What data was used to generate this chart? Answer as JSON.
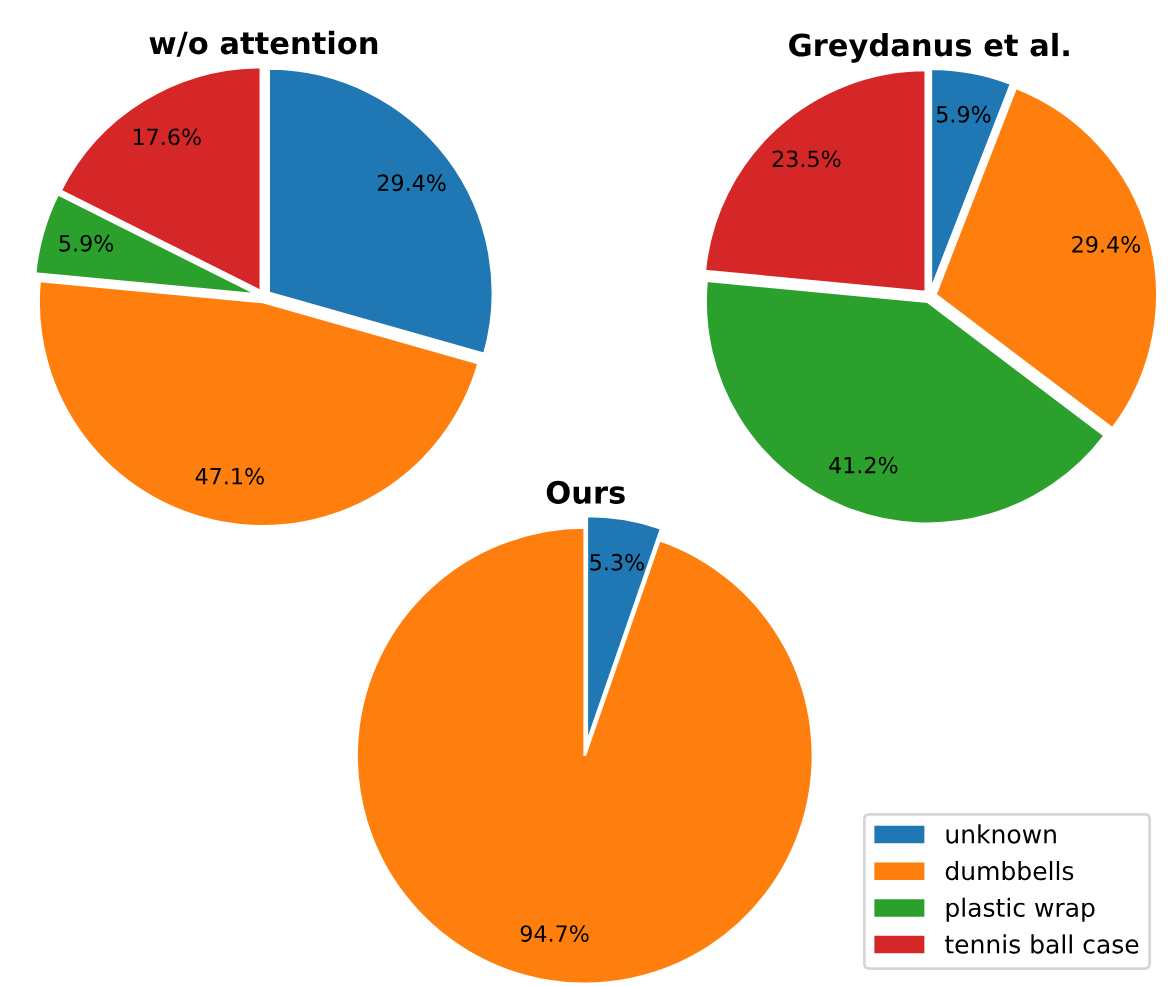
{
  "chart_data": [
    {
      "type": "pie",
      "title": "w/o attention",
      "categories": [
        "unknown",
        "dumbbells",
        "plastic wrap",
        "tennis ball case"
      ],
      "values": [
        29.4,
        47.1,
        5.9,
        17.6
      ],
      "value_labels": [
        "29.4%",
        "47.1%",
        "5.9%",
        "17.6%"
      ],
      "colors": [
        "#1f77b4",
        "#ff7f0e",
        "#2ca02c",
        "#d62728"
      ],
      "legend": "bottom right"
    },
    {
      "type": "pie",
      "title": "Greydanus et al.",
      "categories": [
        null,
        null,
        null,
        null
      ],
      "values": [
        5.9,
        29.4,
        41.2,
        23.5
      ],
      "value_labels": [
        "5.9%",
        "29.4%",
        "41.2%",
        "23.5%"
      ],
      "colors": [
        "#1f77b4",
        "#ff7f0e",
        "#2ca02c",
        "#d62728"
      ]
    },
    {
      "type": "pie",
      "title": "Ours",
      "categories": [
        null,
        null
      ],
      "values": [
        5.3,
        94.7
      ],
      "value_labels": [
        "5.3%",
        "94.7%"
      ],
      "colors": [
        "#1f77b4",
        "#ff7f0e"
      ]
    }
  ]
}
